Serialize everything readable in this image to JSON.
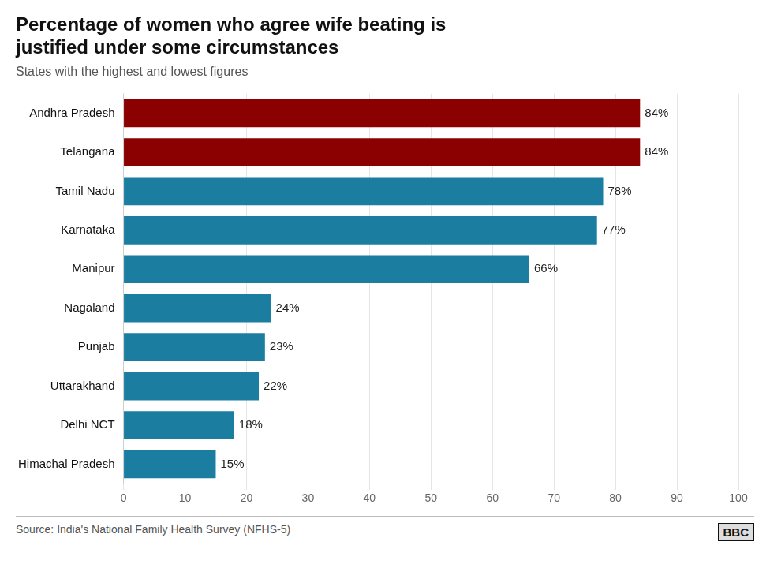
{
  "chart_data": {
    "type": "bar",
    "orientation": "horizontal",
    "title": [
      "Percentage of women who agree wife beating is",
      "justified under some circumstances"
    ],
    "subtitle": "States with the highest and lowest figures",
    "categories": [
      "Andhra Pradesh",
      "Telangana",
      "Tamil Nadu",
      "Karnataka",
      "Manipur",
      "Nagaland",
      "Punjab",
      "Uttarakhand",
      "Delhi NCT",
      "Himachal Pradesh"
    ],
    "values": [
      84,
      84,
      78,
      77,
      66,
      24,
      23,
      22,
      18,
      15
    ],
    "value_labels": [
      "84%",
      "84%",
      "78%",
      "77%",
      "66%",
      "24%",
      "23%",
      "22%",
      "18%",
      "15%"
    ],
    "data_labels": true,
    "colors": [
      "#8B0000",
      "#8B0000",
      "#1B7EA1",
      "#1B7EA1",
      "#1B7EA1",
      "#1B7EA1",
      "#1B7EA1",
      "#1B7EA1",
      "#1B7EA1",
      "#1B7EA1"
    ],
    "xlim": [
      0,
      100
    ],
    "xticks": [
      0,
      10,
      20,
      30,
      40,
      50,
      60,
      70,
      80,
      90,
      100
    ],
    "grid": true,
    "annotations": [
      "Source: India's National Family Health Survey (NFHS-5)",
      "BBC"
    ]
  }
}
